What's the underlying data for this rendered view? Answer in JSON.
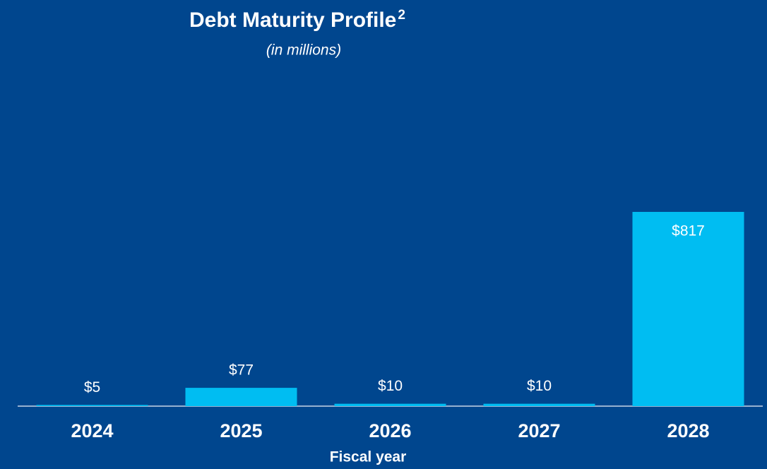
{
  "chart_data": {
    "type": "bar",
    "title": "Debt Maturity Profile",
    "title_superscript": "2",
    "subtitle": "(in millions)",
    "x_label": "Fiscal year",
    "categories": [
      "2024",
      "2025",
      "2026",
      "2027",
      "2028"
    ],
    "values": [
      5,
      77,
      10,
      10,
      817
    ],
    "value_labels": [
      "$5",
      "$77",
      "$10",
      "$10",
      "$817"
    ],
    "color": "#00bdf2"
  }
}
